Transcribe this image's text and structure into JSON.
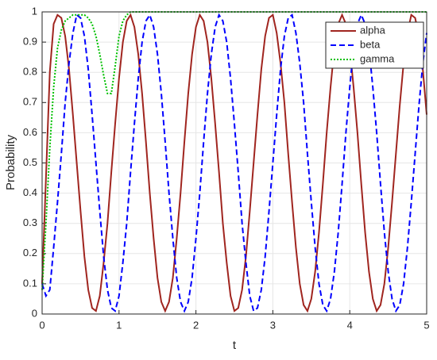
{
  "chart_data": {
    "type": "line",
    "xlabel": "t",
    "ylabel": "Probability",
    "x": [
      0,
      0.05,
      0.1,
      0.15,
      0.2,
      0.25,
      0.3,
      0.35,
      0.4,
      0.45,
      0.5,
      0.55,
      0.6,
      0.65,
      0.7,
      0.75,
      0.8,
      0.85,
      0.9,
      0.95,
      1,
      1.05,
      1.1,
      1.15,
      1.2,
      1.25,
      1.3,
      1.35,
      1.4,
      1.45,
      1.5,
      1.55,
      1.6,
      1.65,
      1.7,
      1.75,
      1.8,
      1.85,
      1.9,
      1.95,
      2,
      2.05,
      2.1,
      2.15,
      2.2,
      2.25,
      2.3,
      2.35,
      2.4,
      2.45,
      2.5,
      2.55,
      2.6,
      2.65,
      2.7,
      2.75,
      2.8,
      2.85,
      2.9,
      2.95,
      3,
      3.05,
      3.1,
      3.15,
      3.2,
      3.25,
      3.3,
      3.35,
      3.4,
      3.45,
      3.5,
      3.55,
      3.6,
      3.65,
      3.7,
      3.75,
      3.8,
      3.85,
      3.9,
      3.95,
      4,
      4.05,
      4.1,
      4.15,
      4.2,
      4.25,
      4.3,
      4.35,
      4.4,
      4.45,
      4.5,
      4.55,
      4.6,
      4.65,
      4.7,
      4.75,
      4.8,
      4.85,
      4.9,
      4.95,
      5
    ],
    "series": [
      {
        "name": "alpha",
        "color": "#a0251f",
        "dash": "solid",
        "values": [
          0.1,
          0.45,
          0.8,
          0.96,
          0.99,
          0.98,
          0.92,
          0.81,
          0.66,
          0.5,
          0.34,
          0.19,
          0.08,
          0.02,
          0.01,
          0.06,
          0.17,
          0.3,
          0.47,
          0.63,
          0.78,
          0.9,
          0.97,
          0.99,
          0.95,
          0.86,
          0.73,
          0.57,
          0.4,
          0.25,
          0.12,
          0.04,
          0.01,
          0.04,
          0.12,
          0.25,
          0.4,
          0.57,
          0.73,
          0.86,
          0.95,
          0.99,
          0.97,
          0.9,
          0.78,
          0.63,
          0.47,
          0.3,
          0.17,
          0.06,
          0.01,
          0.02,
          0.08,
          0.19,
          0.34,
          0.5,
          0.66,
          0.81,
          0.92,
          0.98,
          0.99,
          0.93,
          0.83,
          0.7,
          0.53,
          0.37,
          0.22,
          0.1,
          0.03,
          0.01,
          0.05,
          0.14,
          0.27,
          0.43,
          0.6,
          0.75,
          0.88,
          0.96,
          0.99,
          0.96,
          0.88,
          0.75,
          0.6,
          0.43,
          0.27,
          0.14,
          0.05,
          0.01,
          0.03,
          0.1,
          0.22,
          0.37,
          0.53,
          0.69,
          0.83,
          0.93,
          0.99,
          0.98,
          0.92,
          0.81,
          0.66
        ]
      },
      {
        "name": "beta",
        "color": "#0000ff",
        "dash": "dashed",
        "values": [
          0.1,
          0.06,
          0.08,
          0.22,
          0.37,
          0.53,
          0.7,
          0.83,
          0.93,
          0.99,
          0.98,
          0.92,
          0.81,
          0.66,
          0.5,
          0.34,
          0.19,
          0.08,
          0.02,
          0.01,
          0.06,
          0.17,
          0.3,
          0.47,
          0.63,
          0.78,
          0.9,
          0.97,
          0.99,
          0.95,
          0.86,
          0.73,
          0.57,
          0.4,
          0.25,
          0.12,
          0.04,
          0.01,
          0.04,
          0.12,
          0.25,
          0.4,
          0.57,
          0.73,
          0.86,
          0.95,
          0.99,
          0.97,
          0.9,
          0.78,
          0.63,
          0.47,
          0.3,
          0.17,
          0.06,
          0.01,
          0.02,
          0.08,
          0.19,
          0.34,
          0.5,
          0.66,
          0.81,
          0.92,
          0.98,
          0.99,
          0.93,
          0.83,
          0.7,
          0.53,
          0.37,
          0.22,
          0.1,
          0.03,
          0.01,
          0.05,
          0.14,
          0.27,
          0.43,
          0.6,
          0.75,
          0.88,
          0.96,
          0.99,
          0.96,
          0.88,
          0.75,
          0.6,
          0.43,
          0.27,
          0.14,
          0.05,
          0.01,
          0.03,
          0.1,
          0.22,
          0.37,
          0.53,
          0.69,
          0.83,
          0.93
        ]
      },
      {
        "name": "gamma",
        "color": "#00c000",
        "dash": "dotted",
        "values": [
          0.08,
          0.3,
          0.55,
          0.75,
          0.88,
          0.94,
          0.97,
          0.98,
          0.99,
          0.99,
          0.99,
          0.99,
          0.98,
          0.96,
          0.92,
          0.86,
          0.79,
          0.73,
          0.73,
          0.82,
          0.92,
          0.97,
          0.99,
          1,
          1,
          1,
          1,
          1,
          1,
          1,
          1,
          1,
          1,
          1,
          1,
          1,
          1,
          1,
          1,
          1,
          1,
          1,
          1,
          1,
          1,
          1,
          1,
          1,
          1,
          1,
          1,
          1,
          1,
          1,
          1,
          1,
          1,
          1,
          1,
          1,
          1,
          1,
          1,
          1,
          1,
          1,
          1,
          1,
          1,
          1,
          1,
          1,
          1,
          1,
          1,
          1,
          1,
          1,
          1,
          1,
          1,
          1,
          1,
          1,
          1,
          1,
          1,
          1,
          1,
          1,
          1,
          1,
          1,
          1,
          1,
          1,
          1,
          1,
          1,
          1,
          1
        ]
      }
    ],
    "xlim": [
      0,
      5
    ],
    "xticks": [
      0,
      1,
      2,
      3,
      4,
      5
    ],
    "ylim": [
      0,
      1
    ],
    "yticks": [
      0,
      0.1,
      0.2,
      0.3,
      0.4,
      0.5,
      0.6,
      0.7,
      0.8,
      0.9,
      1
    ],
    "grid": true,
    "legend": "northeast"
  }
}
